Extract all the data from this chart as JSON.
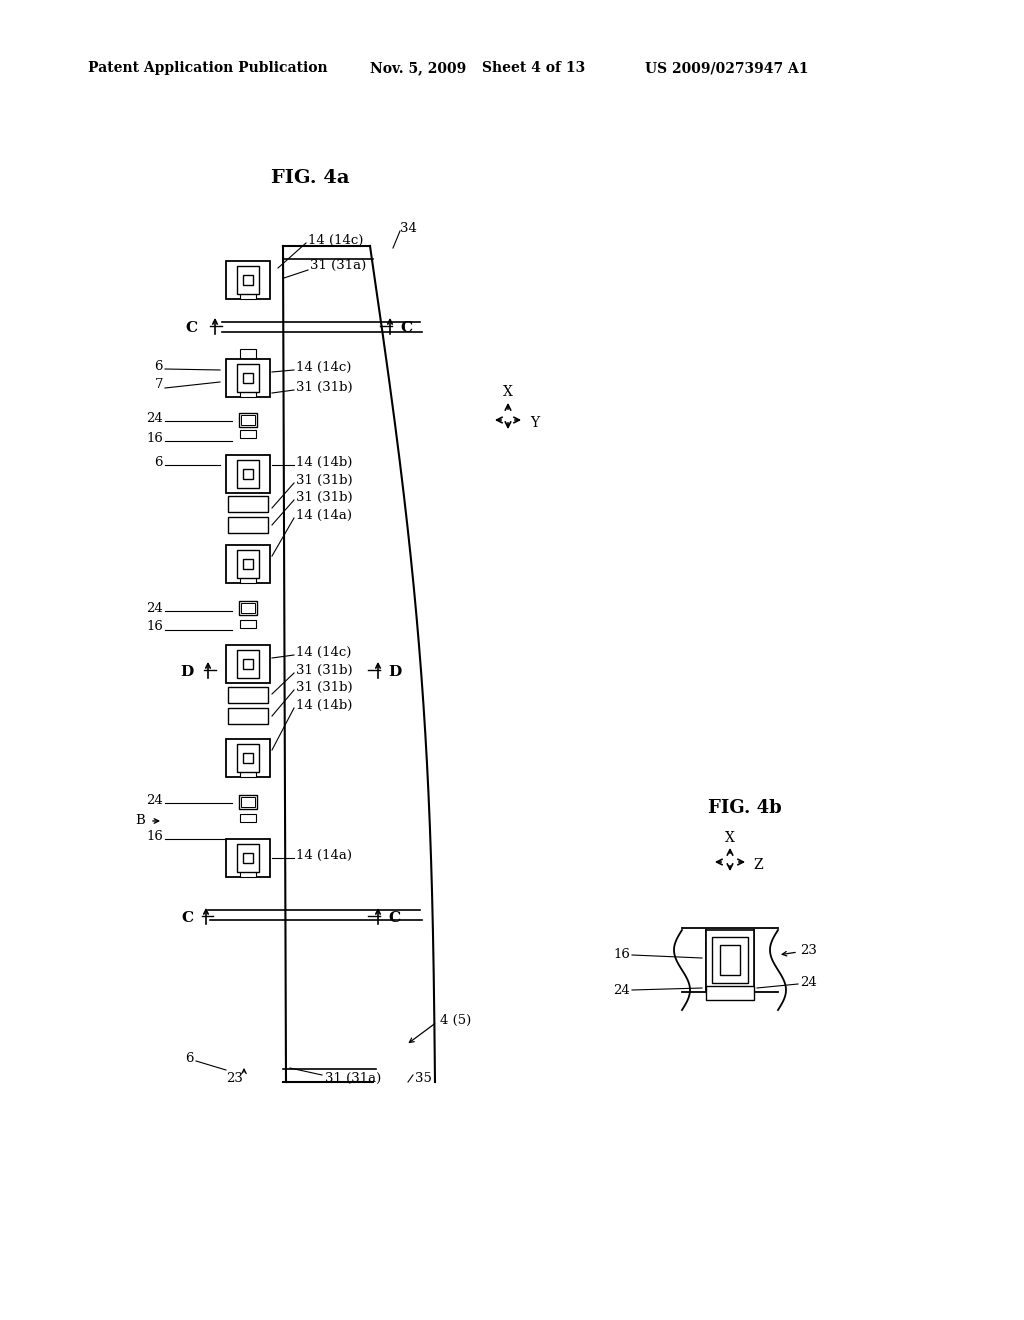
{
  "bg_color": "#ffffff",
  "header_text": "Patent Application Publication",
  "header_date": "Nov. 5, 2009",
  "header_sheet": "Sheet 4 of 13",
  "header_patent": "US 2009/0273947 A1",
  "fig4a_title": "FIG. 4a",
  "fig4b_title": "FIG. 4b",
  "line_color": "#000000",
  "text_color": "#000000"
}
